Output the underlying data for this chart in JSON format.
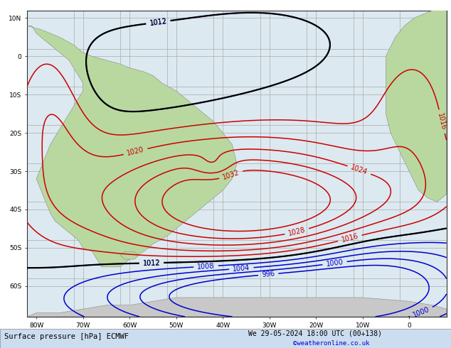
{
  "title": "Surface pressure [hPa] ECMWF",
  "subtitle": "We 29-05-2024 18:00 UTC (00+138)",
  "credit": "©weatheronline.co.uk",
  "background_color": "#dce9f0",
  "land_color": "#b8d8a0",
  "land_edge_color": "#888888",
  "grid_color": "#aaaaaa",
  "figsize": [
    6.34,
    4.9
  ],
  "dpi": 100,
  "red_color": "#cc0000",
  "blue_color": "#0000cc",
  "black_color": "#000000",
  "lon_min": -82,
  "lon_max": 8,
  "lat_min": -68,
  "lat_max": 12,
  "lon_ticks": [
    -70,
    -60,
    -50,
    -40,
    -30,
    -20,
    -10
  ],
  "lat_ticks": [
    -60,
    -50,
    -40,
    -30,
    -20,
    -10,
    0,
    10
  ]
}
